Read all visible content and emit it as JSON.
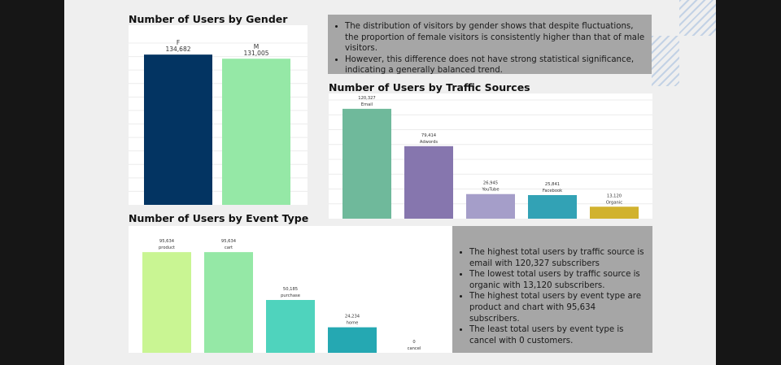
{
  "colors": {
    "page_bg": "#efefef",
    "outer_bg": "#161616",
    "note_bg": "#a6a6a6",
    "stripe": "#c3d2e5"
  },
  "titles": {
    "gender": "Number of Users by Gender",
    "traffic": "Number of Users by Traffic Sources",
    "event": "Number of Users by Event Type"
  },
  "notes": {
    "gender_summary": [
      "The distribution of visitors by gender shows that despite fluctuations, the proportion of female visitors is consistently higher than that of male visitors.",
      "However, this difference does not have strong statistical significance, indicating a generally balanced trend."
    ],
    "insights": [
      "The highest total users by traffic source is email with 120,327 subscribers",
      "The lowest total users by traffic source is organic with 13,120 subscribers.",
      "The highest total users by event type are product and chart with 95,634 subscribers.",
      "The least total users by event type is cancel with 0 customers."
    ]
  },
  "chart_data": [
    {
      "id": "gender",
      "type": "bar",
      "title": "Number of Users by Gender",
      "categories": [
        "F",
        "M"
      ],
      "values": [
        134682,
        131005
      ],
      "value_labels": [
        "134,682",
        "131,005"
      ],
      "colors": [
        "#033462",
        "#95e8a6"
      ],
      "ylim": [
        0,
        145000
      ],
      "grid": true,
      "legend": "none"
    },
    {
      "id": "traffic",
      "type": "bar",
      "title": "Number of Users by Traffic Sources",
      "categories": [
        "Email",
        "Adwords",
        "YouTube",
        "Facebook",
        "Organic"
      ],
      "values": [
        120327,
        79414,
        26945,
        25841,
        13120
      ],
      "value_labels": [
        "120,327",
        "79,414",
        "26,945",
        "25,841",
        "13,120"
      ],
      "colors": [
        "#6fb99b",
        "#8676ae",
        "#a59ec9",
        "#32a2b5",
        "#d1b22e"
      ],
      "ylim": [
        0,
        130000
      ],
      "grid": true,
      "legend": "none"
    },
    {
      "id": "event",
      "type": "bar",
      "title": "Number of Users by Event Type",
      "categories": [
        "product",
        "cart",
        "purchase",
        "home",
        "cancel"
      ],
      "values": [
        95634,
        95634,
        50185,
        24234,
        0
      ],
      "value_labels": [
        "95,634",
        "95,634",
        "50,185",
        "24,234",
        "0"
      ],
      "colors": [
        "#c9f593",
        "#95e8a6",
        "#4fd3bd",
        "#25a8b2",
        "#777777"
      ],
      "ylim": [
        0,
        105000
      ],
      "grid": false,
      "legend": "none"
    }
  ]
}
